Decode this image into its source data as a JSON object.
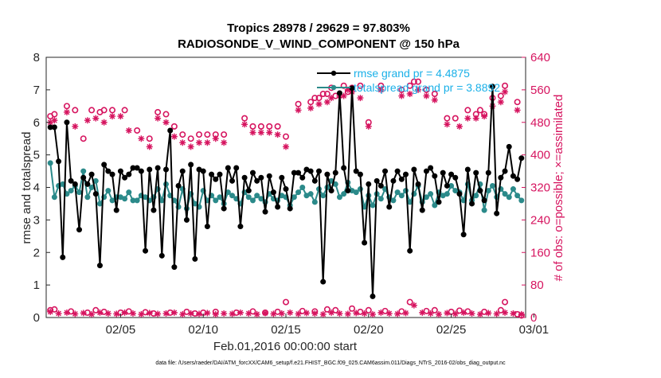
{
  "chart_data": {
    "type": "line",
    "title": "Tropics 28978 / 29629 = 97.803%",
    "subtitle": "RADIOSONDE_V_WIND_COMPONENT @ 150 hPa",
    "xlabel": "Feb.01,2016 00:00:00 start",
    "ylabel": "rmse and totalspread",
    "y2label": "# of obs: o=possible; ×=assimilated",
    "footnote": "data file: /Users/raeder/DAI/ATM_forcXX/CAM6_setup/f.e21.FHIST_BGC.f09_025.CAM6assim.011/Diags_NTrS_2016-02/obs_diag_output.nc",
    "xlim": [
      0.5,
      29.5
    ],
    "ylim": [
      0,
      8
    ],
    "y2lim": [
      0,
      640
    ],
    "x_ticks": [
      {
        "day": 5,
        "label": "02/05"
      },
      {
        "day": 10,
        "label": "02/10"
      },
      {
        "day": 15,
        "label": "02/15"
      },
      {
        "day": 20,
        "label": "02/20"
      },
      {
        "day": 25,
        "label": "02/25"
      },
      {
        "day": 30,
        "label": "03/01"
      }
    ],
    "y_ticks": [
      "0",
      "1",
      "2",
      "3",
      "4",
      "5",
      "6",
      "7",
      "8"
    ],
    "y2_ticks": [
      "0",
      "80",
      "160",
      "240",
      "320",
      "400",
      "480",
      "560",
      "640"
    ],
    "legend": [
      {
        "label": "rmse grand pr = 4.4875",
        "color": "#000000"
      },
      {
        "label": "totalspread grand pr = 3.8892",
        "color": "#2b8a8a"
      }
    ],
    "colors": {
      "rmse": "#000000",
      "spread": "#2b8a8a",
      "counts": "#d6145f",
      "legend_text": "#1ab0e8"
    },
    "x": [
      0.75,
      1.0,
      1.25,
      1.5,
      1.75,
      2.0,
      2.25,
      2.5,
      2.75,
      3.0,
      3.25,
      3.5,
      3.75,
      4.0,
      4.25,
      4.5,
      4.75,
      5.0,
      5.25,
      5.5,
      5.75,
      6.0,
      6.25,
      6.5,
      6.75,
      7.0,
      7.25,
      7.5,
      7.75,
      8.0,
      8.25,
      8.5,
      8.75,
      9.0,
      9.25,
      9.5,
      9.75,
      10.0,
      10.25,
      10.5,
      10.75,
      11.0,
      11.25,
      11.5,
      11.75,
      12.0,
      12.25,
      12.5,
      12.75,
      13.0,
      13.25,
      13.5,
      13.75,
      14.0,
      14.25,
      14.5,
      14.75,
      15.0,
      15.25,
      15.5,
      15.75,
      16.0,
      16.25,
      16.5,
      16.75,
      17.0,
      17.25,
      17.5,
      17.75,
      18.0,
      18.25,
      18.5,
      18.75,
      19.0,
      19.25,
      19.5,
      19.75,
      20.0,
      20.25,
      20.5,
      20.75,
      21.0,
      21.25,
      21.5,
      21.75,
      22.0,
      22.25,
      22.5,
      22.75,
      23.0,
      23.25,
      23.5,
      23.75,
      24.0,
      24.25,
      24.5,
      24.75,
      25.0,
      25.25,
      25.5,
      25.75,
      26.0,
      26.25,
      26.5,
      26.75,
      27.0,
      27.25,
      27.5,
      27.75,
      28.0,
      28.25,
      28.5,
      28.75,
      29.0,
      29.25
    ],
    "rmse": [
      5.85,
      5.85,
      4.8,
      1.85,
      6.0,
      4.2,
      4.1,
      2.7,
      4.3,
      4.1,
      4.4,
      3.8,
      1.6,
      4.7,
      4.5,
      4.4,
      3.3,
      4.5,
      4.3,
      4.4,
      4.6,
      4.6,
      4.5,
      2.05,
      4.55,
      3.3,
      4.6,
      1.9,
      4.55,
      5.75,
      1.55,
      4.05,
      4.5,
      3.0,
      4.7,
      1.8,
      4.55,
      4.5,
      2.8,
      4.4,
      4.25,
      4.4,
      3.35,
      4.6,
      4.2,
      4.6,
      2.8,
      4.3,
      3.9,
      4.45,
      4.2,
      4.3,
      3.25,
      4.35,
      3.85,
      3.4,
      4.3,
      3.95,
      3.35,
      4.45,
      4.45,
      4.3,
      4.55,
      4.5,
      4.2,
      4.5,
      1.1,
      4.4,
      3.9,
      4.45,
      6.9,
      4.6,
      3.9,
      7.05,
      4.5,
      4.4,
      2.3,
      4.1,
      0.65,
      4.2,
      4.05,
      4.5,
      3.4,
      4.2,
      4.5,
      4.25,
      4.4,
      2.05,
      4.55,
      4.1,
      3.3,
      4.5,
      4.6,
      4.35,
      3.55,
      4.45,
      4.05,
      4.4,
      4.3,
      3.8,
      2.55,
      4.55,
      3.5,
      4.45,
      3.9,
      3.6,
      4.45,
      7.1,
      3.2,
      4.3,
      4.5,
      5.25,
      4.35,
      4.25,
      4.9
    ],
    "spread": [
      4.75,
      3.7,
      4.05,
      4.1,
      3.8,
      3.9,
      4.05,
      3.85,
      4.5,
      3.7,
      4.0,
      4.2,
      3.5,
      3.7,
      3.9,
      3.6,
      3.7,
      3.7,
      3.65,
      3.85,
      3.6,
      3.6,
      3.75,
      3.7,
      3.6,
      3.7,
      3.95,
      3.6,
      4.1,
      3.75,
      3.6,
      3.4,
      3.95,
      3.35,
      3.8,
      3.5,
      3.4,
      3.9,
      3.6,
      3.75,
      3.6,
      3.7,
      3.5,
      3.85,
      3.75,
      3.65,
      3.5,
      3.85,
      3.7,
      3.6,
      3.75,
      3.65,
      3.55,
      3.8,
      3.65,
      3.6,
      3.75,
      3.7,
      3.45,
      3.7,
      3.85,
      4.0,
      3.75,
      3.8,
      3.55,
      3.95,
      3.75,
      4.0,
      4.2,
      4.1,
      3.7,
      3.8,
      4.15,
      3.9,
      3.85,
      3.95,
      3.4,
      3.75,
      3.45,
      3.8,
      3.65,
      3.95,
      3.7,
      3.6,
      3.85,
      3.75,
      3.9,
      3.55,
      3.8,
      4.05,
      3.55,
      3.7,
      3.8,
      3.45,
      3.85,
      3.75,
      3.8,
      4.05,
      3.9,
      3.85,
      3.6,
      4.1,
      3.6,
      3.75,
      4.1,
      3.3,
      3.9,
      4.05,
      3.7,
      3.95,
      3.8,
      3.7,
      3.95,
      3.75,
      3.6
    ],
    "possible_days": [
      0.75,
      1.0,
      1.75,
      2.25,
      2.75,
      3.25,
      3.75,
      4.0,
      4.5,
      5.25,
      6.0,
      6.75,
      7.25,
      7.75,
      8.25,
      8.75,
      9.25,
      9.75,
      10.25,
      10.75,
      11.25,
      12.5,
      13.0,
      13.5,
      14.0,
      14.5,
      15.0,
      15.75,
      16.5,
      16.75,
      17.0,
      17.25,
      17.5,
      17.75,
      18.0,
      18.5,
      18.75,
      19.0,
      19.5,
      20.0,
      20.75,
      22.0,
      22.5,
      22.75,
      23.0,
      23.5,
      24.0,
      24.75,
      25.25,
      26.0,
      26.5,
      26.75,
      27.0,
      27.5,
      28.0,
      28.25,
      29.0
    ],
    "possible": [
      495,
      500,
      520,
      510,
      440,
      510,
      505,
      510,
      510,
      510,
      460,
      440,
      505,
      500,
      470,
      450,
      440,
      450,
      450,
      450,
      450,
      490,
      470,
      470,
      470,
      470,
      445,
      525,
      530,
      540,
      540,
      550,
      550,
      565,
      545,
      570,
      555,
      565,
      570,
      480,
      570,
      560,
      570,
      580,
      580,
      560,
      550,
      490,
      490,
      510,
      500,
      510,
      500,
      540,
      545,
      570,
      530
    ],
    "assimilated_days": [
      0.75,
      1.0,
      1.75,
      2.25,
      3.0,
      3.5,
      4.0,
      4.5,
      5.0,
      5.5,
      6.25,
      6.75,
      7.25,
      7.75,
      8.25,
      8.75,
      9.25,
      9.75,
      10.25,
      10.75,
      11.25,
      12.5,
      13.0,
      13.5,
      14.0,
      14.5,
      15.0,
      15.75,
      16.5,
      17.0,
      17.5,
      17.75,
      18.25,
      18.5,
      18.75,
      19.0,
      19.5,
      20.0,
      20.75,
      22.0,
      22.5,
      23.0,
      23.5,
      24.0,
      24.75,
      25.5,
      26.0,
      26.5,
      27.0,
      27.5,
      28.0,
      28.25,
      29.0
    ],
    "assimilated": [
      480,
      485,
      505,
      470,
      485,
      490,
      480,
      495,
      495,
      460,
      440,
      420,
      490,
      480,
      445,
      430,
      420,
      430,
      430,
      440,
      430,
      475,
      455,
      455,
      455,
      450,
      420,
      510,
      515,
      525,
      530,
      540,
      545,
      545,
      560,
      555,
      540,
      470,
      560,
      545,
      550,
      560,
      545,
      535,
      475,
      470,
      490,
      490,
      495,
      520,
      530,
      555,
      510
    ],
    "low_possible_days": [
      0.75,
      1.0,
      2.0,
      3.0,
      3.5,
      4.0,
      5.0,
      5.5,
      6.5,
      7.0,
      8.0,
      9.0,
      9.5,
      10.0,
      10.75,
      12.0,
      13.0,
      13.75,
      14.5,
      15.0,
      16.0,
      16.75,
      17.5,
      18.0,
      19.0,
      19.5,
      20.0,
      21.0,
      22.0,
      22.5,
      23.5,
      24.0,
      25.0,
      25.5,
      26.0,
      27.0,
      28.0,
      28.25,
      29.0,
      29.25
    ],
    "low_possible": [
      18,
      20,
      15,
      12,
      18,
      14,
      12,
      15,
      13,
      10,
      12,
      14,
      10,
      12,
      14,
      12,
      15,
      12,
      14,
      38,
      16,
      15,
      20,
      18,
      22,
      14,
      18,
      16,
      15,
      38,
      16,
      18,
      14,
      17,
      15,
      14,
      18,
      38,
      8,
      5
    ],
    "low_assimilated_days": [
      0.75,
      1.25,
      1.75,
      2.25,
      2.75,
      3.25,
      3.75,
      4.25,
      4.75,
      5.25,
      5.75,
      6.25,
      6.75,
      7.25,
      7.75,
      8.25,
      8.75,
      9.25,
      9.75,
      10.25,
      10.75,
      11.25,
      11.75,
      12.25,
      12.75,
      13.25,
      13.75,
      14.25,
      14.75,
      15.25,
      15.75,
      16.25,
      16.75,
      17.25,
      17.75,
      18.25,
      18.75,
      19.25,
      19.75,
      20.25,
      20.75,
      21.25,
      21.75,
      22.25,
      22.75,
      23.25,
      23.75,
      24.25,
      24.75,
      25.25,
      25.75,
      26.25,
      26.75,
      27.25,
      27.75,
      28.25,
      28.75,
      29.25
    ],
    "low_assimilated": [
      14,
      10,
      12,
      9,
      11,
      8,
      12,
      10,
      9,
      12,
      10,
      8,
      11,
      9,
      10,
      12,
      8,
      10,
      9,
      11,
      8,
      10,
      9,
      12,
      10,
      8,
      11,
      9,
      10,
      12,
      9,
      11,
      10,
      8,
      12,
      10,
      9,
      11,
      10,
      8,
      12,
      10,
      9,
      11,
      30,
      12,
      10,
      8,
      11,
      9,
      12,
      10,
      8,
      11,
      9,
      12,
      10,
      8
    ]
  }
}
